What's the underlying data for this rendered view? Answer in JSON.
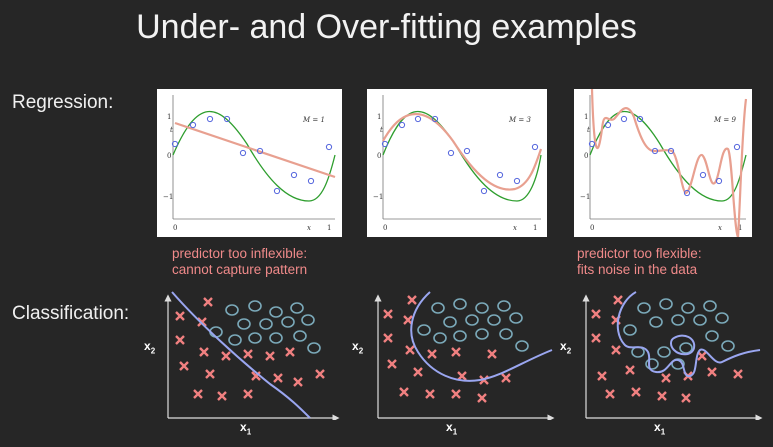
{
  "title": "Under- and Over-fitting examples",
  "regression_label": "Regression:",
  "classification_label": "Classification:",
  "regression_plots": [
    {
      "m_label": "M = 1",
      "y_ticks": [
        "1",
        "0",
        "−1"
      ],
      "x_ticks": [
        "0",
        "1"
      ],
      "y_axis": "t",
      "x_axis": "x"
    },
    {
      "m_label": "M = 3",
      "y_ticks": [
        "1",
        "0",
        "−1"
      ],
      "x_ticks": [
        "0",
        "1"
      ],
      "y_axis": "t",
      "x_axis": "x"
    },
    {
      "m_label": "M = 9",
      "y_ticks": [
        "1",
        "0",
        "−1"
      ],
      "x_ticks": [
        "0",
        "1"
      ],
      "y_axis": "t",
      "x_axis": "x"
    }
  ],
  "annotations": {
    "underfit_line1": "predictor too inflexible:",
    "underfit_line2": "cannot capture pattern",
    "overfit_line1": "predictor too flexible:",
    "overfit_line2": "fits noise in the data"
  },
  "classification_plots": [
    {
      "x_label": "x",
      "x_sub": "1",
      "y_label": "x",
      "y_sub": "2"
    },
    {
      "x_label": "x",
      "x_sub": "1",
      "y_label": "x",
      "y_sub": "2"
    },
    {
      "x_label": "x",
      "x_sub": "1",
      "y_label": "x",
      "y_sub": "2"
    }
  ],
  "colors": {
    "background": "#262626",
    "annotation": "#f08a8a",
    "fit_curve": "#e8a090",
    "true_curve": "#2e9e2e",
    "data_point": "#5566dd",
    "cross": "#f08080",
    "circle": "#7aa8b8",
    "boundary": "#9aa6f0"
  }
}
